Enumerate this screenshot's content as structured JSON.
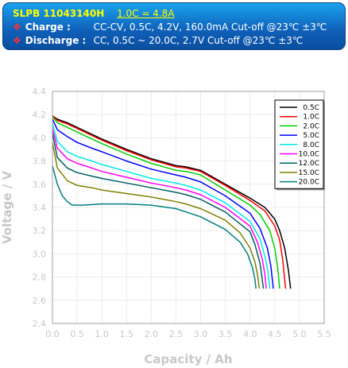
{
  "header": {
    "model": "SLPB 11043140H",
    "rate": "1.0C = 4.8A",
    "charge_label": "Charge    :",
    "charge_text": "CC-CV, 0.5C, 4.2V, 160.0mA Cut-off @23℃ ±3℃",
    "discharge_label": "Discharge :",
    "discharge_text": "CC, 0.5C ~ 20.0C, 2.7V Cut-off @23℃ ±3℃"
  },
  "chart_data": {
    "type": "line",
    "xlabel": "Capacity / Ah",
    "ylabel": "Voltage / V",
    "xlim": [
      0,
      5.5
    ],
    "ylim": [
      2.4,
      4.4
    ],
    "xticks": [
      0,
      0.5,
      1,
      1.5,
      2,
      2.5,
      3,
      3.5,
      4,
      4.5,
      5,
      5.5
    ],
    "xtick_labels": [
      "0.0",
      "0.5",
      "1.0",
      "1.5",
      "2.0",
      "2.5",
      "3.0",
      "3.5",
      "4.0",
      "4.5",
      "5.0",
      "5.5"
    ],
    "yticks": [
      2.4,
      2.6,
      2.8,
      3.0,
      3.2,
      3.4,
      3.6,
      3.8,
      4.0,
      4.2,
      4.4
    ],
    "ytick_labels": [
      "2.4",
      "2.6",
      "2.8",
      "3.0",
      "3.2",
      "3.4",
      "3.6",
      "3.8",
      "4.0",
      "4.2",
      "4.4"
    ],
    "grid": true,
    "legend_position": "top-right",
    "series": [
      {
        "name": "0.5C",
        "color": "#000000",
        "points": [
          [
            0,
            4.19
          ],
          [
            0.1,
            4.16
          ],
          [
            0.3,
            4.13
          ],
          [
            0.5,
            4.09
          ],
          [
            0.8,
            4.03
          ],
          [
            1.0,
            3.99
          ],
          [
            1.5,
            3.9
          ],
          [
            2.0,
            3.82
          ],
          [
            2.5,
            3.76
          ],
          [
            2.7,
            3.75
          ],
          [
            3.0,
            3.72
          ],
          [
            3.5,
            3.6
          ],
          [
            4.0,
            3.48
          ],
          [
            4.3,
            3.4
          ],
          [
            4.5,
            3.3
          ],
          [
            4.6,
            3.2
          ],
          [
            4.7,
            3.05
          ],
          [
            4.78,
            2.85
          ],
          [
            4.82,
            2.7
          ]
        ]
      },
      {
        "name": "1.0C",
        "color": "#ff0000",
        "points": [
          [
            0,
            4.19
          ],
          [
            0.1,
            4.15
          ],
          [
            0.3,
            4.12
          ],
          [
            0.5,
            4.08
          ],
          [
            0.8,
            4.02
          ],
          [
            1.0,
            3.98
          ],
          [
            1.5,
            3.89
          ],
          [
            2.0,
            3.81
          ],
          [
            2.5,
            3.75
          ],
          [
            2.7,
            3.74
          ],
          [
            3.0,
            3.71
          ],
          [
            3.5,
            3.59
          ],
          [
            4.0,
            3.46
          ],
          [
            4.3,
            3.37
          ],
          [
            4.5,
            3.24
          ],
          [
            4.6,
            3.12
          ],
          [
            4.66,
            2.95
          ],
          [
            4.72,
            2.7
          ]
        ]
      },
      {
        "name": "2.0C",
        "color": "#00d000",
        "points": [
          [
            0,
            4.18
          ],
          [
            0.1,
            4.13
          ],
          [
            0.3,
            4.09
          ],
          [
            0.5,
            4.05
          ],
          [
            0.8,
            3.99
          ],
          [
            1.0,
            3.95
          ],
          [
            1.5,
            3.86
          ],
          [
            2.0,
            3.78
          ],
          [
            2.5,
            3.72
          ],
          [
            2.7,
            3.71
          ],
          [
            3.0,
            3.68
          ],
          [
            3.5,
            3.55
          ],
          [
            4.0,
            3.42
          ],
          [
            4.2,
            3.34
          ],
          [
            4.4,
            3.2
          ],
          [
            4.5,
            3.05
          ],
          [
            4.56,
            2.88
          ],
          [
            4.6,
            2.7
          ]
        ]
      },
      {
        "name": "5.0C",
        "color": "#0000ff",
        "points": [
          [
            0,
            4.16
          ],
          [
            0.1,
            4.07
          ],
          [
            0.3,
            4.01
          ],
          [
            0.5,
            3.96
          ],
          [
            0.8,
            3.91
          ],
          [
            1.0,
            3.88
          ],
          [
            1.5,
            3.8
          ],
          [
            2.0,
            3.73
          ],
          [
            2.5,
            3.68
          ],
          [
            2.7,
            3.66
          ],
          [
            3.0,
            3.62
          ],
          [
            3.5,
            3.5
          ],
          [
            4.0,
            3.35
          ],
          [
            4.2,
            3.22
          ],
          [
            4.35,
            3.05
          ],
          [
            4.42,
            2.9
          ],
          [
            4.47,
            2.7
          ]
        ]
      },
      {
        "name": "8.0C",
        "color": "#00e8e8",
        "points": [
          [
            0,
            4.12
          ],
          [
            0.1,
            3.97
          ],
          [
            0.3,
            3.88
          ],
          [
            0.5,
            3.84
          ],
          [
            0.8,
            3.8
          ],
          [
            1.0,
            3.77
          ],
          [
            1.5,
            3.71
          ],
          [
            2.0,
            3.65
          ],
          [
            2.5,
            3.61
          ],
          [
            2.7,
            3.59
          ],
          [
            3.0,
            3.55
          ],
          [
            3.5,
            3.44
          ],
          [
            4.0,
            3.28
          ],
          [
            4.2,
            3.13
          ],
          [
            4.3,
            2.98
          ],
          [
            4.36,
            2.85
          ],
          [
            4.4,
            2.7
          ]
        ]
      },
      {
        "name": "10.0C",
        "color": "#ff00ff",
        "points": [
          [
            0,
            4.08
          ],
          [
            0.1,
            3.91
          ],
          [
            0.3,
            3.82
          ],
          [
            0.5,
            3.78
          ],
          [
            0.8,
            3.74
          ],
          [
            1.0,
            3.71
          ],
          [
            1.5,
            3.66
          ],
          [
            2.0,
            3.61
          ],
          [
            2.5,
            3.57
          ],
          [
            2.7,
            3.55
          ],
          [
            3.0,
            3.51
          ],
          [
            3.5,
            3.4
          ],
          [
            4.0,
            3.24
          ],
          [
            4.15,
            3.1
          ],
          [
            4.25,
            2.95
          ],
          [
            4.3,
            2.82
          ],
          [
            4.33,
            2.7
          ]
        ]
      },
      {
        "name": "12.0C",
        "color": "#006060",
        "points": [
          [
            0,
            4.04
          ],
          [
            0.1,
            3.83
          ],
          [
            0.3,
            3.74
          ],
          [
            0.5,
            3.7
          ],
          [
            0.8,
            3.67
          ],
          [
            1.0,
            3.65
          ],
          [
            1.5,
            3.61
          ],
          [
            2.0,
            3.57
          ],
          [
            2.5,
            3.53
          ],
          [
            2.7,
            3.51
          ],
          [
            3.0,
            3.47
          ],
          [
            3.5,
            3.36
          ],
          [
            4.0,
            3.19
          ],
          [
            4.1,
            3.08
          ],
          [
            4.2,
            2.92
          ],
          [
            4.24,
            2.8
          ],
          [
            4.27,
            2.7
          ]
        ]
      },
      {
        "name": "15.0C",
        "color": "#808000",
        "points": [
          [
            0,
            3.96
          ],
          [
            0.1,
            3.74
          ],
          [
            0.3,
            3.63
          ],
          [
            0.5,
            3.59
          ],
          [
            0.8,
            3.57
          ],
          [
            1.0,
            3.55
          ],
          [
            1.5,
            3.52
          ],
          [
            2.0,
            3.49
          ],
          [
            2.5,
            3.45
          ],
          [
            2.7,
            3.43
          ],
          [
            3.0,
            3.39
          ],
          [
            3.5,
            3.29
          ],
          [
            3.8,
            3.18
          ],
          [
            4.0,
            3.05
          ],
          [
            4.1,
            2.93
          ],
          [
            4.15,
            2.82
          ],
          [
            4.19,
            2.7
          ]
        ]
      },
      {
        "name": "20.0C",
        "color": "#008080",
        "points": [
          [
            0,
            3.76
          ],
          [
            0.1,
            3.6
          ],
          [
            0.2,
            3.5
          ],
          [
            0.3,
            3.45
          ],
          [
            0.4,
            3.42
          ],
          [
            0.6,
            3.42
          ],
          [
            1.0,
            3.43
          ],
          [
            1.5,
            3.43
          ],
          [
            2.0,
            3.42
          ],
          [
            2.5,
            3.39
          ],
          [
            3.0,
            3.32
          ],
          [
            3.5,
            3.21
          ],
          [
            3.8,
            3.1
          ],
          [
            3.95,
            3.0
          ],
          [
            4.05,
            2.88
          ],
          [
            4.1,
            2.78
          ],
          [
            4.12,
            2.7
          ]
        ]
      }
    ]
  }
}
